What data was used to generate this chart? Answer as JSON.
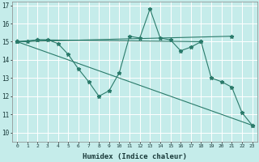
{
  "xlabel": "Humidex (Indice chaleur)",
  "background_color": "#c5ecea",
  "grid_color": "#ffffff",
  "line_color": "#2a7a6a",
  "xlim": [
    -0.5,
    23.5
  ],
  "ylim": [
    9.5,
    17.2
  ],
  "xtick_labels": [
    "0",
    "1",
    "2",
    "3",
    "4",
    "5",
    "6",
    "7",
    "8",
    "9",
    "10",
    "11",
    "12",
    "13",
    "14",
    "15",
    "16",
    "17",
    "18",
    "19",
    "20",
    "21",
    "22",
    "23"
  ],
  "ytick_values": [
    10,
    11,
    12,
    13,
    14,
    15,
    16,
    17
  ],
  "series": [
    {
      "x": [
        0,
        1,
        2,
        3,
        4,
        5,
        6,
        7,
        8,
        9,
        10,
        11,
        12,
        13,
        14,
        15,
        16,
        17,
        18,
        19,
        20,
        21,
        22,
        23
      ],
      "y": [
        15.0,
        15.0,
        15.1,
        15.1,
        14.9,
        14.3,
        13.5,
        12.8,
        12.0,
        12.3,
        13.3,
        15.3,
        15.2,
        16.8,
        15.2,
        15.1,
        14.5,
        14.7,
        15.0,
        13.0,
        12.8,
        12.5,
        11.1,
        10.4
      ]
    },
    {
      "x": [
        0,
        23
      ],
      "y": [
        15.0,
        10.4
      ]
    },
    {
      "x": [
        0,
        2,
        18
      ],
      "y": [
        15.0,
        15.1,
        15.0
      ]
    },
    {
      "x": [
        0,
        21
      ],
      "y": [
        15.0,
        15.3
      ]
    }
  ]
}
